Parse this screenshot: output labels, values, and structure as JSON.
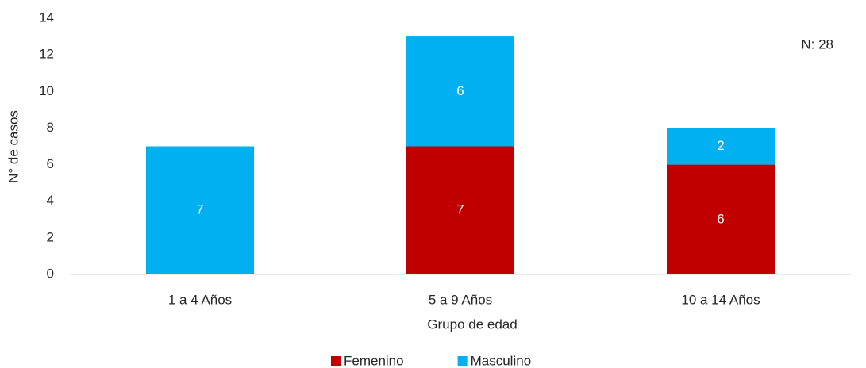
{
  "chart_data": {
    "type": "stacked_bar",
    "annotation": "N: 28",
    "x_label": "Grupo de edad",
    "y_label": "N° de casos",
    "categories": [
      "1 a 4 Años",
      "5 a 9 Años",
      "10 a 14 Años"
    ],
    "series": [
      {
        "name": "Femenino",
        "color": "#c00000",
        "values": [
          null,
          7,
          6
        ]
      },
      {
        "name": "Masculino",
        "color": "#00b0f0",
        "values": [
          7,
          6,
          2
        ]
      }
    ],
    "ylim": [
      0,
      14
    ],
    "yticks": [
      0,
      2,
      4,
      6,
      8,
      10,
      12,
      14
    ],
    "grid": false,
    "legend": "bottom"
  }
}
